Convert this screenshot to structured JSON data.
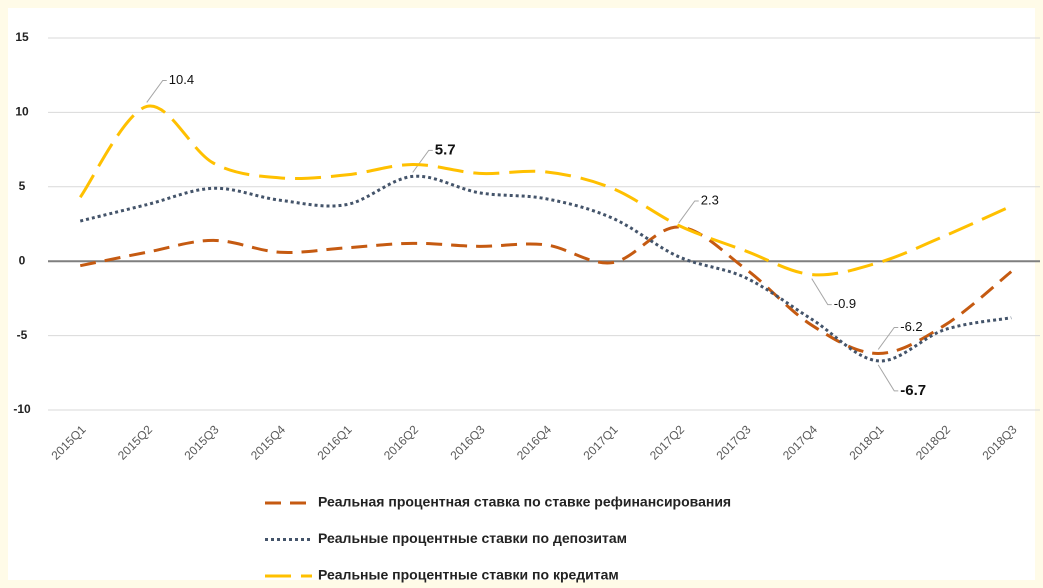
{
  "chart_data": {
    "type": "line",
    "categories": [
      "2015Q1",
      "2015Q2",
      "2015Q3",
      "2015Q4",
      "2016Q1",
      "2016Q2",
      "2016Q3",
      "2016Q4",
      "2017Q1",
      "2017Q2",
      "2017Q3",
      "2017Q4",
      "2018Q1",
      "2018Q2",
      "2018Q3"
    ],
    "series": [
      {
        "name": "Реальная процентная ставка по ставке рефинансирования",
        "color": "#c55a11",
        "dash": "16 9",
        "values": [
          -0.3,
          0.6,
          1.4,
          0.6,
          0.9,
          1.2,
          1.0,
          1.1,
          -0.1,
          2.3,
          -0.5,
          -4.3,
          -6.2,
          -4.3,
          -0.7
        ],
        "value_labels": [
          null,
          null,
          null,
          null,
          null,
          null,
          null,
          null,
          null,
          "2.3",
          null,
          null,
          "-6.2",
          null,
          null
        ]
      },
      {
        "name": "Реальные процентные ставки по депозитам",
        "color": "#44546a",
        "dash": "3 3",
        "label_weight": "bold",
        "values": [
          2.7,
          3.8,
          4.9,
          4.1,
          3.8,
          5.7,
          4.6,
          4.2,
          2.9,
          0.3,
          -1.1,
          -3.9,
          -6.7,
          -4.6,
          -3.8
        ],
        "value_labels": [
          null,
          null,
          null,
          null,
          null,
          "5.7",
          null,
          null,
          null,
          null,
          null,
          null,
          "-6.7",
          null,
          null
        ]
      },
      {
        "name": "Реальные процентные ставки по кредитам",
        "color": "#ffc000",
        "dash": "26 10",
        "values": [
          4.3,
          10.4,
          6.6,
          5.6,
          5.8,
          6.5,
          5.9,
          6.0,
          4.9,
          2.4,
          0.7,
          -0.9,
          -0.1,
          1.7,
          3.7
        ],
        "value_labels": [
          null,
          "10.4",
          null,
          null,
          null,
          null,
          null,
          null,
          null,
          null,
          null,
          "-0.9",
          null,
          null,
          null
        ]
      }
    ],
    "ylim": [
      -10,
      15
    ],
    "yticks": [
      -10,
      -5,
      0,
      5,
      10,
      15
    ],
    "grid": true
  }
}
